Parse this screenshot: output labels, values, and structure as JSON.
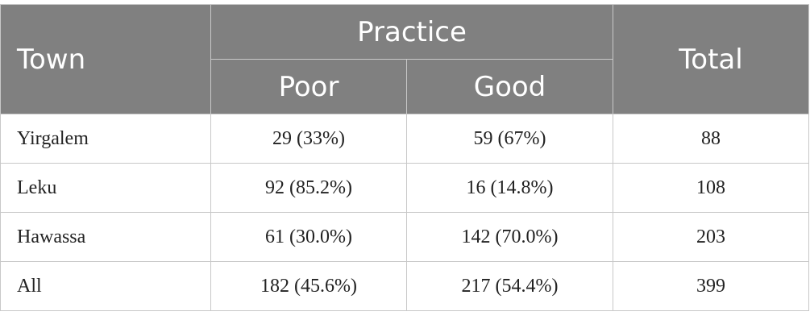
{
  "table": {
    "headers": {
      "town": "Town",
      "group": "Practice",
      "poor": "Poor",
      "good": "Good",
      "total": "Total"
    },
    "rows": [
      {
        "town": "Yirgalem",
        "poor": "29 (33%)",
        "good": "59 (67%)",
        "total": "88"
      },
      {
        "town": "Leku",
        "poor": "92 (85.2%)",
        "good": "16 (14.8%)",
        "total": "108"
      },
      {
        "town": "Hawassa",
        "poor": "61 (30.0%)",
        "good": "142 (70.0%)",
        "total": "203"
      },
      {
        "town": "All",
        "poor": "182 (45.6%)",
        "good": "217 (54.4%)",
        "total": "399"
      }
    ]
  },
  "colors": {
    "header_background": "#808080",
    "header_text": "#ffffff",
    "border": "#c8c8c8",
    "body_text": "#222222"
  }
}
